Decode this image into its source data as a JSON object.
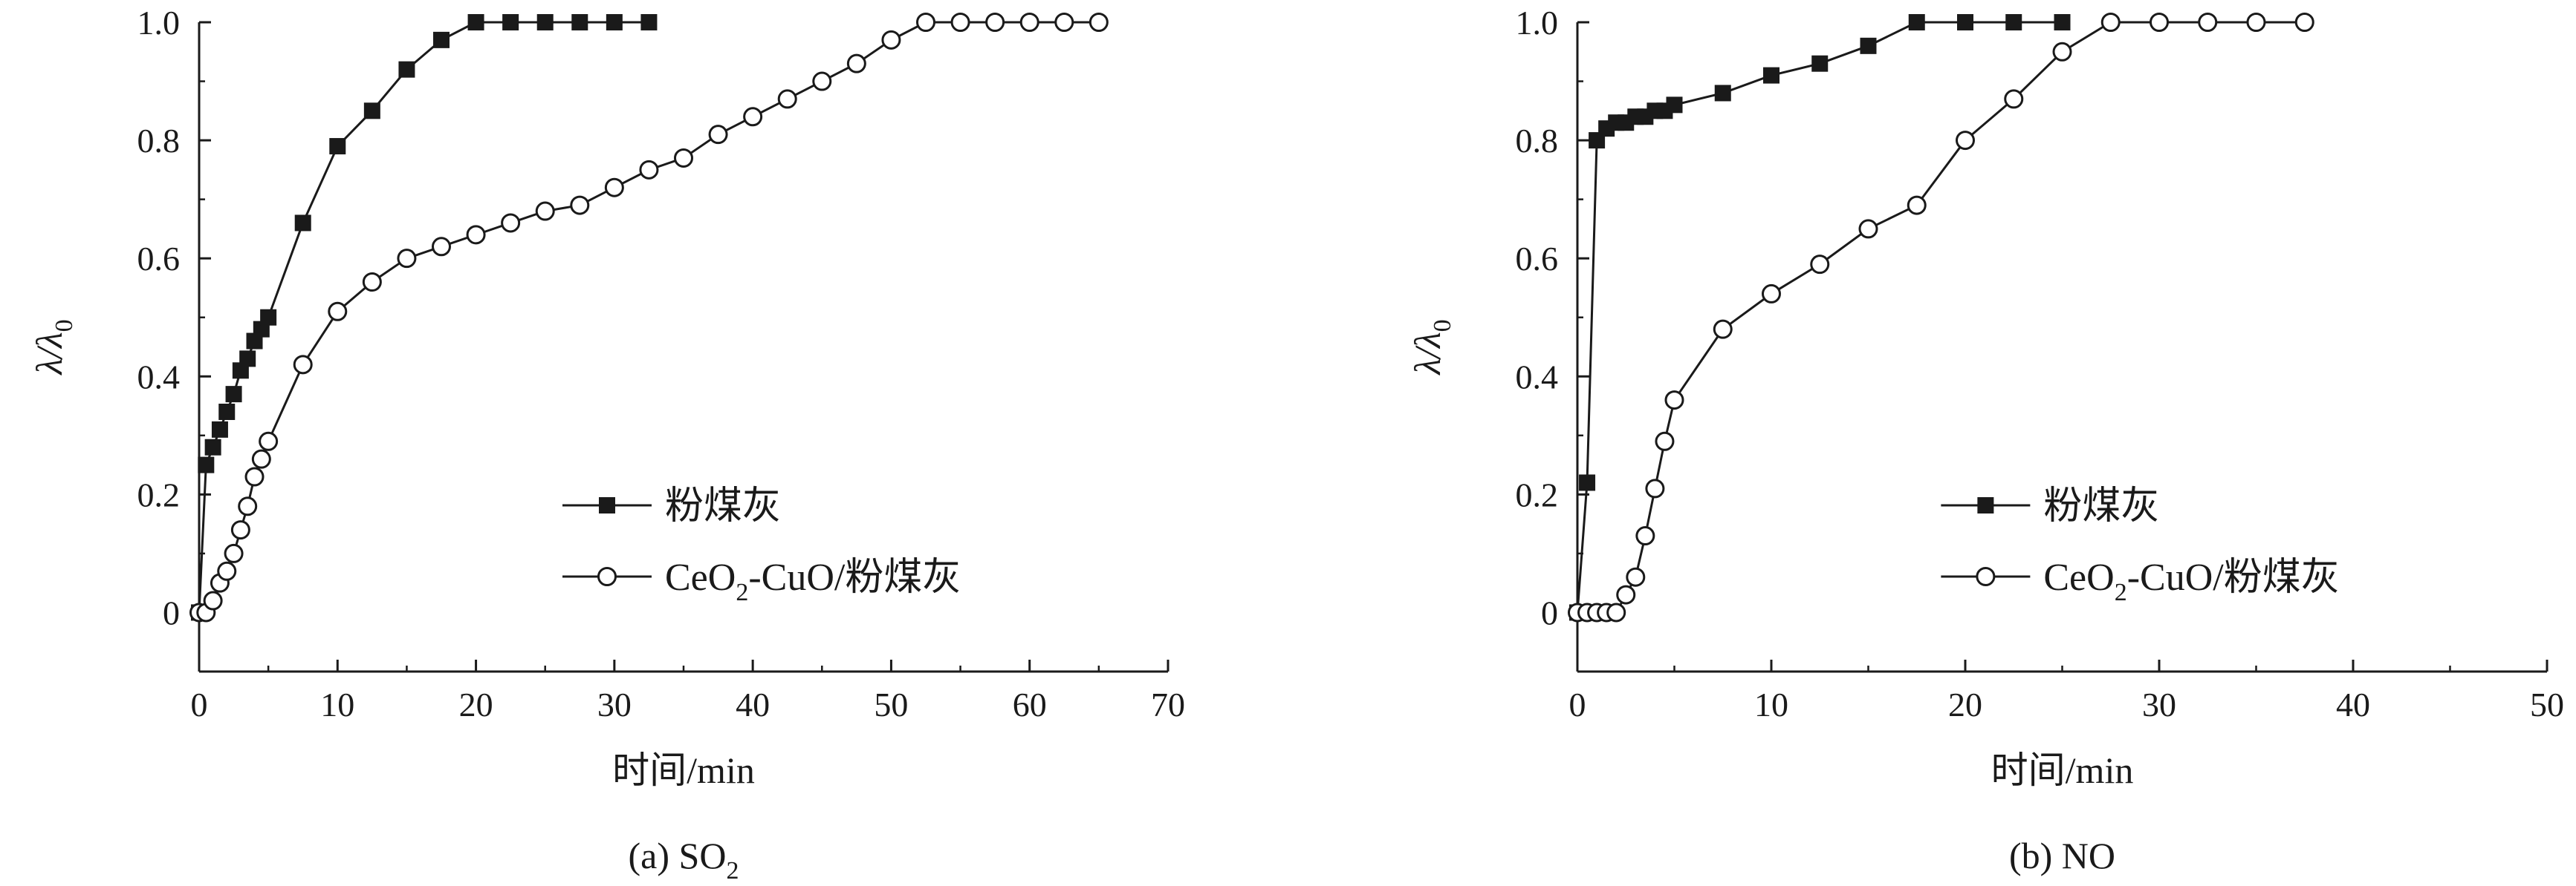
{
  "chart_data": [
    {
      "type": "line",
      "caption": {
        "prefix": "(a) ",
        "main": "SO",
        "sub": "2"
      },
      "xlabel": "时间/min",
      "ylabel": {
        "main": "λ/λ",
        "sub": "0"
      },
      "xlim": [
        0,
        70
      ],
      "ylim": [
        -0.1,
        1.0
      ],
      "xticks": [
        0,
        10,
        20,
        30,
        40,
        50,
        60,
        70
      ],
      "yticks": [
        0,
        0.2,
        0.4,
        0.6,
        0.8,
        1.0
      ],
      "ytick_labels": [
        "0",
        "0.2",
        "0.4",
        "0.6",
        "0.8",
        "1.0"
      ],
      "grid": false,
      "legend_position": "lower-right",
      "series": [
        {
          "name": "粉煤灰",
          "marker": "filled-square",
          "x": [
            0,
            0.5,
            1,
            1.5,
            2,
            2.5,
            3,
            3.5,
            4,
            4.5,
            5,
            7.5,
            10,
            12.5,
            15,
            17.5,
            20,
            22.5,
            25,
            27.5,
            30,
            32.5
          ],
          "y": [
            0,
            0.25,
            0.28,
            0.31,
            0.34,
            0.37,
            0.41,
            0.43,
            0.46,
            0.48,
            0.5,
            0.66,
            0.79,
            0.85,
            0.92,
            0.97,
            1.0,
            1.0,
            1.0,
            1.0,
            1.0,
            1.0
          ]
        },
        {
          "name": "CeO₂-CuO/粉煤灰",
          "legend_label": {
            "a": "CeO",
            "sub": "2",
            "b": "-CuO/粉煤灰"
          },
          "marker": "open-circle",
          "x": [
            0,
            0.5,
            1,
            1.5,
            2,
            2.5,
            3,
            3.5,
            4,
            4.5,
            5,
            7.5,
            10,
            12.5,
            15,
            17.5,
            20,
            22.5,
            25,
            27.5,
            30,
            32.5,
            35,
            37.5,
            40,
            42.5,
            45,
            47.5,
            50,
            52.5,
            55,
            57.5,
            60,
            62.5,
            65
          ],
          "y": [
            0,
            0,
            0.02,
            0.05,
            0.07,
            0.1,
            0.14,
            0.18,
            0.23,
            0.26,
            0.29,
            0.42,
            0.51,
            0.56,
            0.6,
            0.62,
            0.64,
            0.66,
            0.68,
            0.69,
            0.72,
            0.75,
            0.77,
            0.81,
            0.84,
            0.87,
            0.9,
            0.93,
            0.97,
            1.0,
            1.0,
            1.0,
            1.0,
            1.0,
            1.0
          ]
        }
      ]
    },
    {
      "type": "line",
      "caption": {
        "prefix": "(b) ",
        "main": "NO",
        "sub": ""
      },
      "xlabel": "时间/min",
      "ylabel": {
        "main": "λ/λ",
        "sub": "0"
      },
      "xlim": [
        0,
        50
      ],
      "ylim": [
        -0.1,
        1.0
      ],
      "xticks": [
        0,
        10,
        20,
        30,
        40,
        50
      ],
      "yticks": [
        0,
        0.2,
        0.4,
        0.6,
        0.8,
        1.0
      ],
      "ytick_labels": [
        "0",
        "0.2",
        "0.4",
        "0.6",
        "0.8",
        "1.0"
      ],
      "grid": false,
      "legend_position": "lower-right",
      "series": [
        {
          "name": "粉煤灰",
          "marker": "filled-square",
          "x": [
            0,
            0.5,
            1,
            1.5,
            2,
            2.5,
            3,
            3.5,
            4,
            4.5,
            5,
            7.5,
            10,
            12.5,
            15,
            17.5,
            20,
            22.5,
            25
          ],
          "y": [
            0,
            0.22,
            0.8,
            0.82,
            0.83,
            0.83,
            0.84,
            0.84,
            0.85,
            0.85,
            0.86,
            0.88,
            0.91,
            0.93,
            0.96,
            1.0,
            1.0,
            1.0,
            1.0
          ]
        },
        {
          "name": "CeO₂-CuO/粉煤灰",
          "legend_label": {
            "a": "CeO",
            "sub": "2",
            "b": "-CuO/粉煤灰"
          },
          "marker": "open-circle",
          "x": [
            0,
            0.5,
            1,
            1.5,
            2,
            2.5,
            3,
            3.5,
            4,
            4.5,
            5,
            7.5,
            10,
            12.5,
            15,
            17.5,
            20,
            22.5,
            25,
            27.5,
            30,
            32.5,
            35,
            37.5
          ],
          "y": [
            0,
            0,
            0,
            0,
            0,
            0.03,
            0.06,
            0.13,
            0.21,
            0.29,
            0.36,
            0.48,
            0.54,
            0.59,
            0.65,
            0.69,
            0.8,
            0.87,
            0.95,
            1.0,
            1.0,
            1.0,
            1.0,
            1.0
          ]
        }
      ]
    }
  ]
}
